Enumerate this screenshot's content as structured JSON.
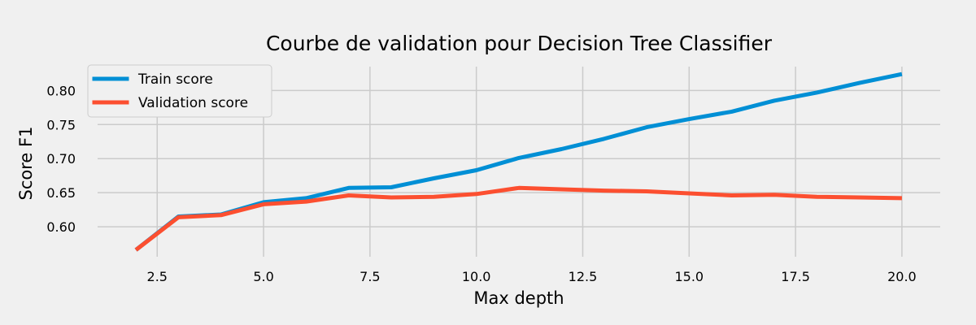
{
  "chart_data": {
    "type": "line",
    "title": "Courbe de validation pour Decision Tree Classifier",
    "xlabel": "Max depth",
    "ylabel": "Score F1",
    "xlim": [
      1.1,
      20.9
    ],
    "ylim": [
      0.556,
      0.835
    ],
    "xticks": [
      2.5,
      5.0,
      7.5,
      10.0,
      12.5,
      15.0,
      17.5,
      20.0
    ],
    "xtick_labels": [
      "2.5",
      "5.0",
      "7.5",
      "10.0",
      "12.5",
      "15.0",
      "17.5",
      "20.0"
    ],
    "yticks": [
      0.6,
      0.65,
      0.7,
      0.75,
      0.8
    ],
    "ytick_labels": [
      "0.60",
      "0.65",
      "0.70",
      "0.75",
      "0.80"
    ],
    "grid": true,
    "legend_position": "top-left",
    "x": [
      2,
      3,
      4,
      5,
      6,
      7,
      8,
      9,
      10,
      11,
      12,
      13,
      14,
      15,
      16,
      17,
      18,
      19,
      20
    ],
    "series": [
      {
        "name": "Train score",
        "color": "#008fd5",
        "values": [
          0.566,
          0.615,
          0.618,
          0.636,
          0.642,
          0.657,
          0.658,
          0.671,
          0.683,
          0.701,
          0.714,
          0.729,
          0.746,
          0.758,
          0.769,
          0.785,
          0.797,
          0.811,
          0.824
        ]
      },
      {
        "name": "Validation score",
        "color": "#fc4f30",
        "values": [
          0.566,
          0.614,
          0.617,
          0.633,
          0.637,
          0.646,
          0.643,
          0.644,
          0.648,
          0.657,
          0.655,
          0.653,
          0.652,
          0.649,
          0.646,
          0.647,
          0.644,
          0.643,
          0.642
        ]
      }
    ]
  }
}
